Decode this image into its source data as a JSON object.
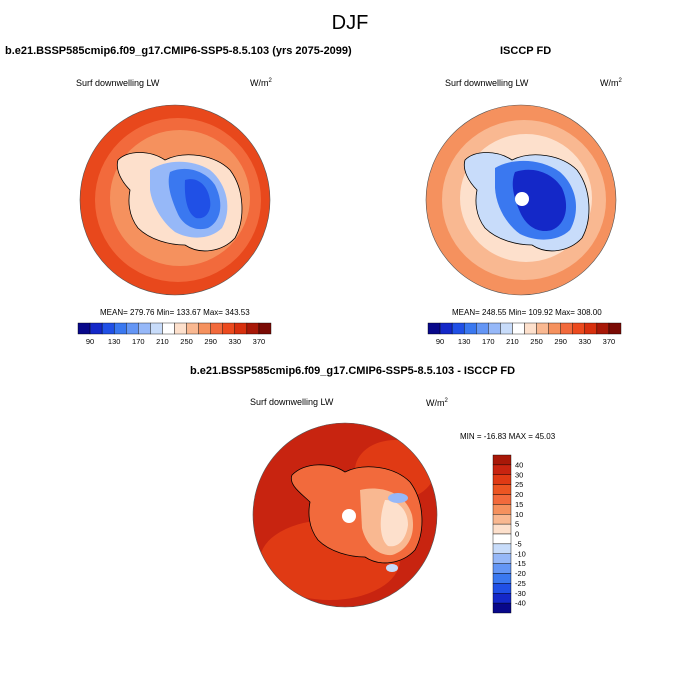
{
  "figure_title": "DJF",
  "chart_data": [
    {
      "type": "heatmap",
      "title": "b.e21.BSSP585cmip6.f09_g17.CMIP6-SSP5-8.5.103 (yrs 2075-2099)",
      "variable": "Surf downwelling LW",
      "units": "W/m",
      "units_sup": "2",
      "projection": "south polar stereographic",
      "stats": {
        "mean": 279.76,
        "min": 133.67,
        "max": 343.53
      },
      "stats_text": "MEAN= 279.76  Min= 133.67  Max= 343.53",
      "colorbar": {
        "orientation": "horizontal",
        "levels": [
          90,
          110,
          130,
          150,
          170,
          190,
          210,
          230,
          250,
          270,
          290,
          310,
          330,
          350,
          370
        ],
        "tick_labels": [
          "90",
          "130",
          "170",
          "210",
          "250",
          "290",
          "330",
          "370"
        ],
        "colors": [
          "#08088a",
          "#1428c8",
          "#2050e6",
          "#3a78f0",
          "#6496f5",
          "#96b8f8",
          "#c8dcfa",
          "#ffffff",
          "#fde0cc",
          "#f9b891",
          "#f5915e",
          "#f26a3c",
          "#ec4a1e",
          "#d8300e",
          "#a81808",
          "#7a0a04"
        ]
      }
    },
    {
      "type": "heatmap",
      "title": "ISCCP FD",
      "variable": "Surf downwelling LW",
      "units": "W/m",
      "units_sup": "2",
      "projection": "south polar stereographic",
      "stats": {
        "mean": 248.55,
        "min": 109.92,
        "max": 308.0
      },
      "stats_text": "MEAN= 248.55  Min= 109.92  Max= 308.00",
      "colorbar": {
        "orientation": "horizontal",
        "levels": [
          90,
          110,
          130,
          150,
          170,
          190,
          210,
          230,
          250,
          270,
          290,
          310,
          330,
          350,
          370
        ],
        "tick_labels": [
          "90",
          "130",
          "170",
          "210",
          "250",
          "290",
          "330",
          "370"
        ],
        "colors": [
          "#08088a",
          "#1428c8",
          "#2050e6",
          "#3a78f0",
          "#6496f5",
          "#96b8f8",
          "#c8dcfa",
          "#ffffff",
          "#fde0cc",
          "#f9b891",
          "#f5915e",
          "#f26a3c",
          "#ec4a1e",
          "#d8300e",
          "#a81808",
          "#7a0a04"
        ]
      }
    },
    {
      "type": "heatmap",
      "title": "b.e21.BSSP585cmip6.f09_g17.CMIP6-SSP5-8.5.103 - ISCCP FD",
      "variable": "Surf downwelling LW",
      "units": "W/m",
      "units_sup": "2",
      "projection": "south polar stereographic",
      "stats": {
        "min": -16.83,
        "max": 45.03
      },
      "stats_text": "MIN = -16.83 MAX =  45.03",
      "colorbar": {
        "orientation": "vertical",
        "levels": [
          -40,
          -30,
          -25,
          -20,
          -15,
          -10,
          -5,
          0,
          5,
          10,
          15,
          20,
          25,
          30,
          40
        ],
        "tick_labels": [
          "40",
          "30",
          "25",
          "20",
          "15",
          "10",
          "5",
          "0",
          "-5",
          "-10",
          "-15",
          "-20",
          "-25",
          "-30",
          "-40"
        ],
        "colors": [
          "#a81808",
          "#c82410",
          "#e03a14",
          "#ec5522",
          "#f26a3c",
          "#f5915e",
          "#f9b891",
          "#fde0cc",
          "#ffffff",
          "#c8dcfa",
          "#96b8f8",
          "#6496f5",
          "#3a78f0",
          "#2050e6",
          "#1428c8",
          "#08088a"
        ]
      }
    }
  ]
}
